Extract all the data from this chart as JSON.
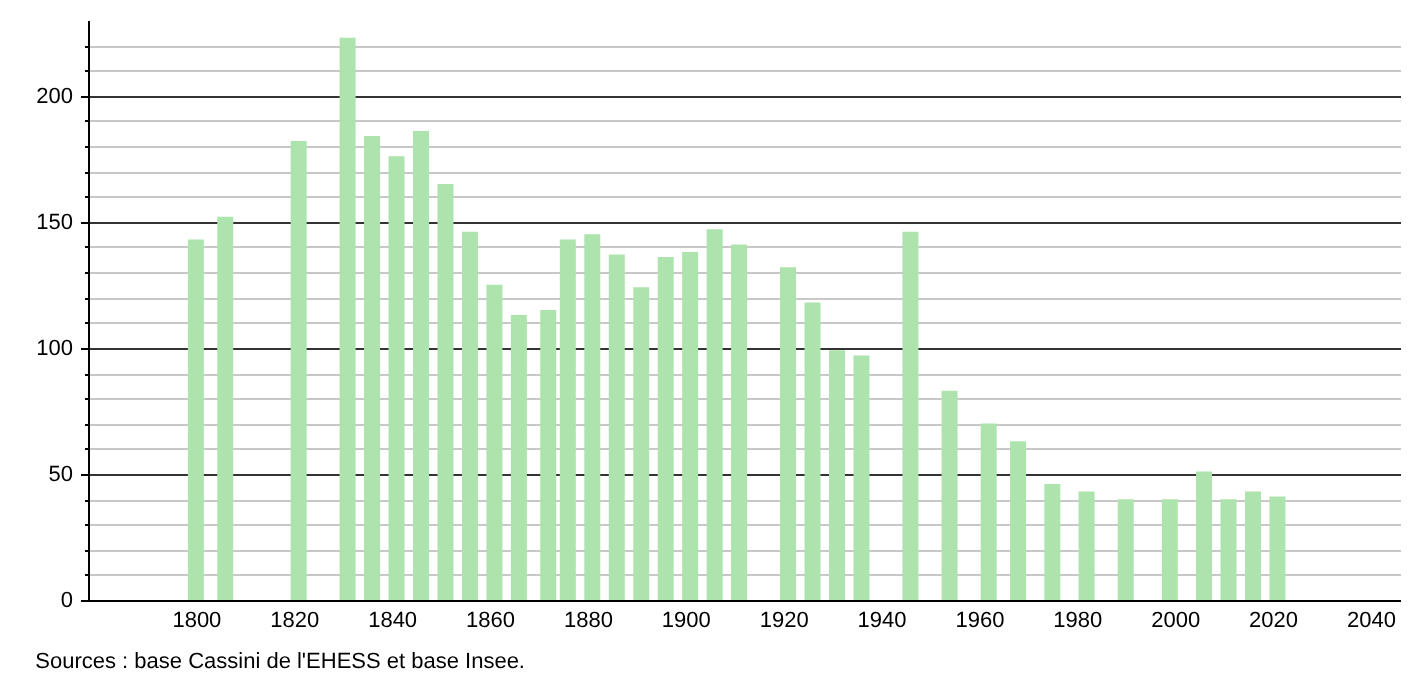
{
  "chart_data": {
    "type": "bar",
    "x": [
      1800,
      1806,
      1821,
      1831,
      1836,
      1841,
      1846,
      1851,
      1856,
      1861,
      1866,
      1872,
      1876,
      1881,
      1886,
      1891,
      1896,
      1901,
      1906,
      1911,
      1921,
      1926,
      1931,
      1936,
      1946,
      1954,
      1962,
      1968,
      1975,
      1982,
      1990,
      1999,
      2006,
      2011,
      2016,
      2021
    ],
    "values": [
      143,
      152,
      182,
      223,
      184,
      176,
      186,
      165,
      146,
      125,
      113,
      115,
      143,
      145,
      137,
      124,
      136,
      138,
      147,
      141,
      132,
      118,
      99,
      97,
      146,
      83,
      70,
      63,
      46,
      43,
      40,
      40,
      51,
      40,
      43,
      41
    ],
    "color": "#ade3ad",
    "xlim": [
      1780,
      2044
    ],
    "xticks": [
      1800,
      1820,
      1840,
      1860,
      1880,
      1900,
      1920,
      1940,
      1960,
      1980,
      2000,
      2020,
      2040
    ],
    "ylim": [
      0,
      230
    ],
    "yticks": [
      0,
      {
        "value": 10,
        "label": null
      },
      {
        "value": 20,
        "label": null
      },
      {
        "value": 30,
        "label": null
      },
      {
        "value": 40,
        "label": null
      },
      50,
      {
        "value": 60,
        "label": null
      },
      {
        "value": 70,
        "label": null
      },
      {
        "value": 80,
        "label": null
      },
      {
        "value": 90,
        "label": null
      },
      100,
      {
        "value": 110,
        "label": null
      },
      {
        "value": 120,
        "label": null
      },
      {
        "value": 130,
        "label": null
      },
      {
        "value": 140,
        "label": null
      },
      150,
      {
        "value": 160,
        "label": null
      },
      {
        "value": 170,
        "label": null
      },
      {
        "value": 180,
        "label": null
      },
      {
        "value": 190,
        "label": null
      },
      200,
      {
        "value": 210,
        "label": null
      },
      {
        "value": 220,
        "label": null
      }
    ],
    "grid": "y",
    "annotations": [
      "Sources : base Cassini de l'EHESS et base Insee."
    ]
  }
}
